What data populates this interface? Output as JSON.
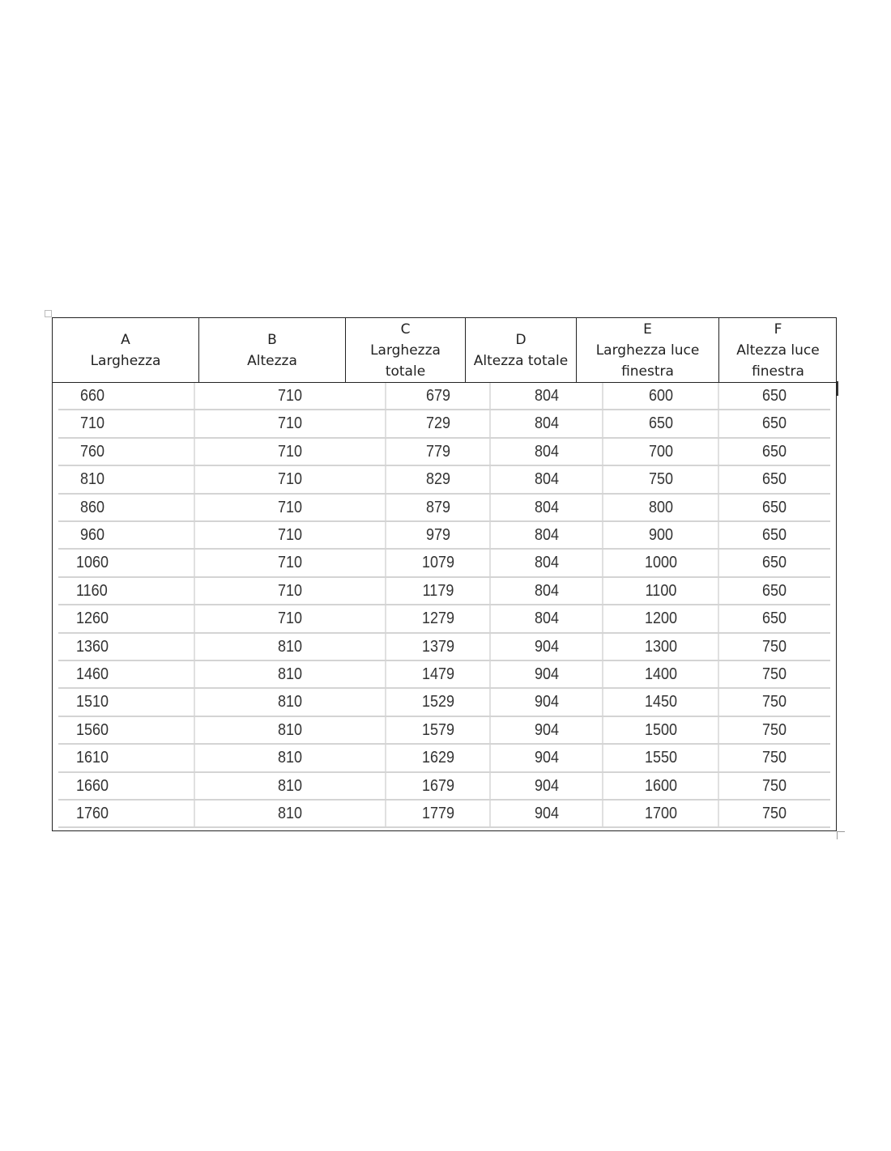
{
  "table": {
    "headers": [
      {
        "letter": "A",
        "label": "Larghezza"
      },
      {
        "letter": "B",
        "label": "Altezza"
      },
      {
        "letter": "C",
        "label": "Larghezza totale"
      },
      {
        "letter": "D",
        "label": "Altezza totale"
      },
      {
        "letter": "E",
        "label": "Larghezza luce finestra"
      },
      {
        "letter": "F",
        "label": "Altezza luce finestra"
      }
    ],
    "rows": [
      [
        "660",
        "710",
        "679",
        "804",
        "600",
        "650"
      ],
      [
        "710",
        "710",
        "729",
        "804",
        "650",
        "650"
      ],
      [
        "760",
        "710",
        "779",
        "804",
        "700",
        "650"
      ],
      [
        "810",
        "710",
        "829",
        "804",
        "750",
        "650"
      ],
      [
        "860",
        "710",
        "879",
        "804",
        "800",
        "650"
      ],
      [
        "960",
        "710",
        "979",
        "804",
        "900",
        "650"
      ],
      [
        "1060",
        "710",
        "1079",
        "804",
        "1000",
        "650"
      ],
      [
        "1160",
        "710",
        "1179",
        "804",
        "1100",
        "650"
      ],
      [
        "1260",
        "710",
        "1279",
        "804",
        "1200",
        "650"
      ],
      [
        "1360",
        "810",
        "1379",
        "904",
        "1300",
        "750"
      ],
      [
        "1460",
        "810",
        "1479",
        "904",
        "1400",
        "750"
      ],
      [
        "1510",
        "810",
        "1529",
        "904",
        "1450",
        "750"
      ],
      [
        "1560",
        "810",
        "1579",
        "904",
        "1500",
        "750"
      ],
      [
        "1610",
        "810",
        "1629",
        "904",
        "1550",
        "750"
      ],
      [
        "1660",
        "810",
        "1679",
        "904",
        "1600",
        "750"
      ],
      [
        "1760",
        "810",
        "1779",
        "904",
        "1700",
        "750"
      ]
    ]
  }
}
